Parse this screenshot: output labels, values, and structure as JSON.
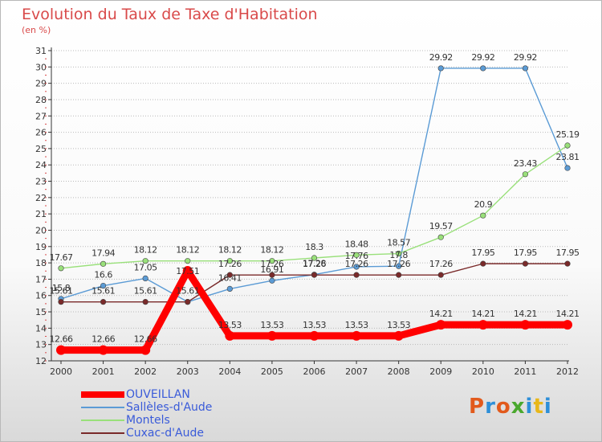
{
  "title": "Evolution du Taux de Taxe d'Habitation",
  "unit": "(en %)",
  "logo": {
    "text": "Proxiti",
    "colors": [
      "#e25a1c",
      "#2e8fd8",
      "#e25a1c",
      "#4aa82e",
      "#2e8fd8",
      "#e8b71a",
      "#2e8fd8"
    ]
  },
  "chart_data": {
    "type": "line",
    "x": [
      2000,
      2001,
      2002,
      2003,
      2004,
      2005,
      2006,
      2007,
      2008,
      2009,
      2010,
      2011,
      2012
    ],
    "ylim": [
      12,
      31
    ],
    "y_ticks": [
      12,
      13,
      14,
      15,
      16,
      17,
      18,
      19,
      20,
      21,
      22,
      23,
      24,
      25,
      26,
      27,
      28,
      29,
      30,
      31
    ],
    "grid": "horizontal dotted",
    "legend_position": "bottom-left",
    "series": [
      {
        "name": "OUVEILLAN",
        "color": "#ff0000",
        "emphasis": true,
        "values": [
          12.66,
          12.66,
          12.66,
          17.51,
          13.53,
          13.53,
          13.53,
          13.53,
          13.53,
          14.21,
          14.21,
          14.21,
          14.21
        ],
        "labels": [
          "12.66",
          "12.66",
          "12.66",
          "",
          "13.53",
          "13.53",
          "13.53",
          "13.53",
          "13.53",
          "14.21",
          "14.21",
          "14.21",
          "14.21"
        ]
      },
      {
        "name": "Sallèles-d'Aude",
        "color": "#5b9bd5",
        "values": [
          15.8,
          16.6,
          17.05,
          15.61,
          16.41,
          16.91,
          17.28,
          17.76,
          17.8,
          29.92,
          29.92,
          29.92,
          23.81
        ],
        "labels": [
          "15.8",
          "16.6",
          "17.05",
          "",
          "16.41",
          "16.91",
          "17.28",
          "17.76",
          "17.8",
          "29.92",
          "29.92",
          "29.92",
          "23.81"
        ]
      },
      {
        "name": "Montels",
        "color": "#99e07a",
        "values": [
          17.67,
          17.94,
          18.12,
          18.12,
          18.12,
          18.12,
          18.3,
          18.48,
          18.57,
          19.57,
          20.9,
          23.43,
          25.19
        ],
        "labels": [
          "17.67",
          "17.94",
          "18.12",
          "18.12",
          "18.12",
          "18.12",
          "18.3",
          "18.48",
          "18.57",
          "19.57",
          "20.9",
          "23.43",
          "25.19"
        ]
      },
      {
        "name": "Cuxac-d'Aude",
        "color": "#7a2a2a",
        "values": [
          15.61,
          15.61,
          15.61,
          15.61,
          17.26,
          17.26,
          17.26,
          17.26,
          17.26,
          17.26,
          17.95,
          17.95,
          17.95
        ],
        "labels": [
          "15.61",
          "15.61",
          "15.61",
          "15.61",
          "17.26",
          "17.26",
          "17.26",
          "17.26",
          "17.26",
          "17.26",
          "17.95",
          "17.95",
          "17.95"
        ]
      }
    ]
  }
}
